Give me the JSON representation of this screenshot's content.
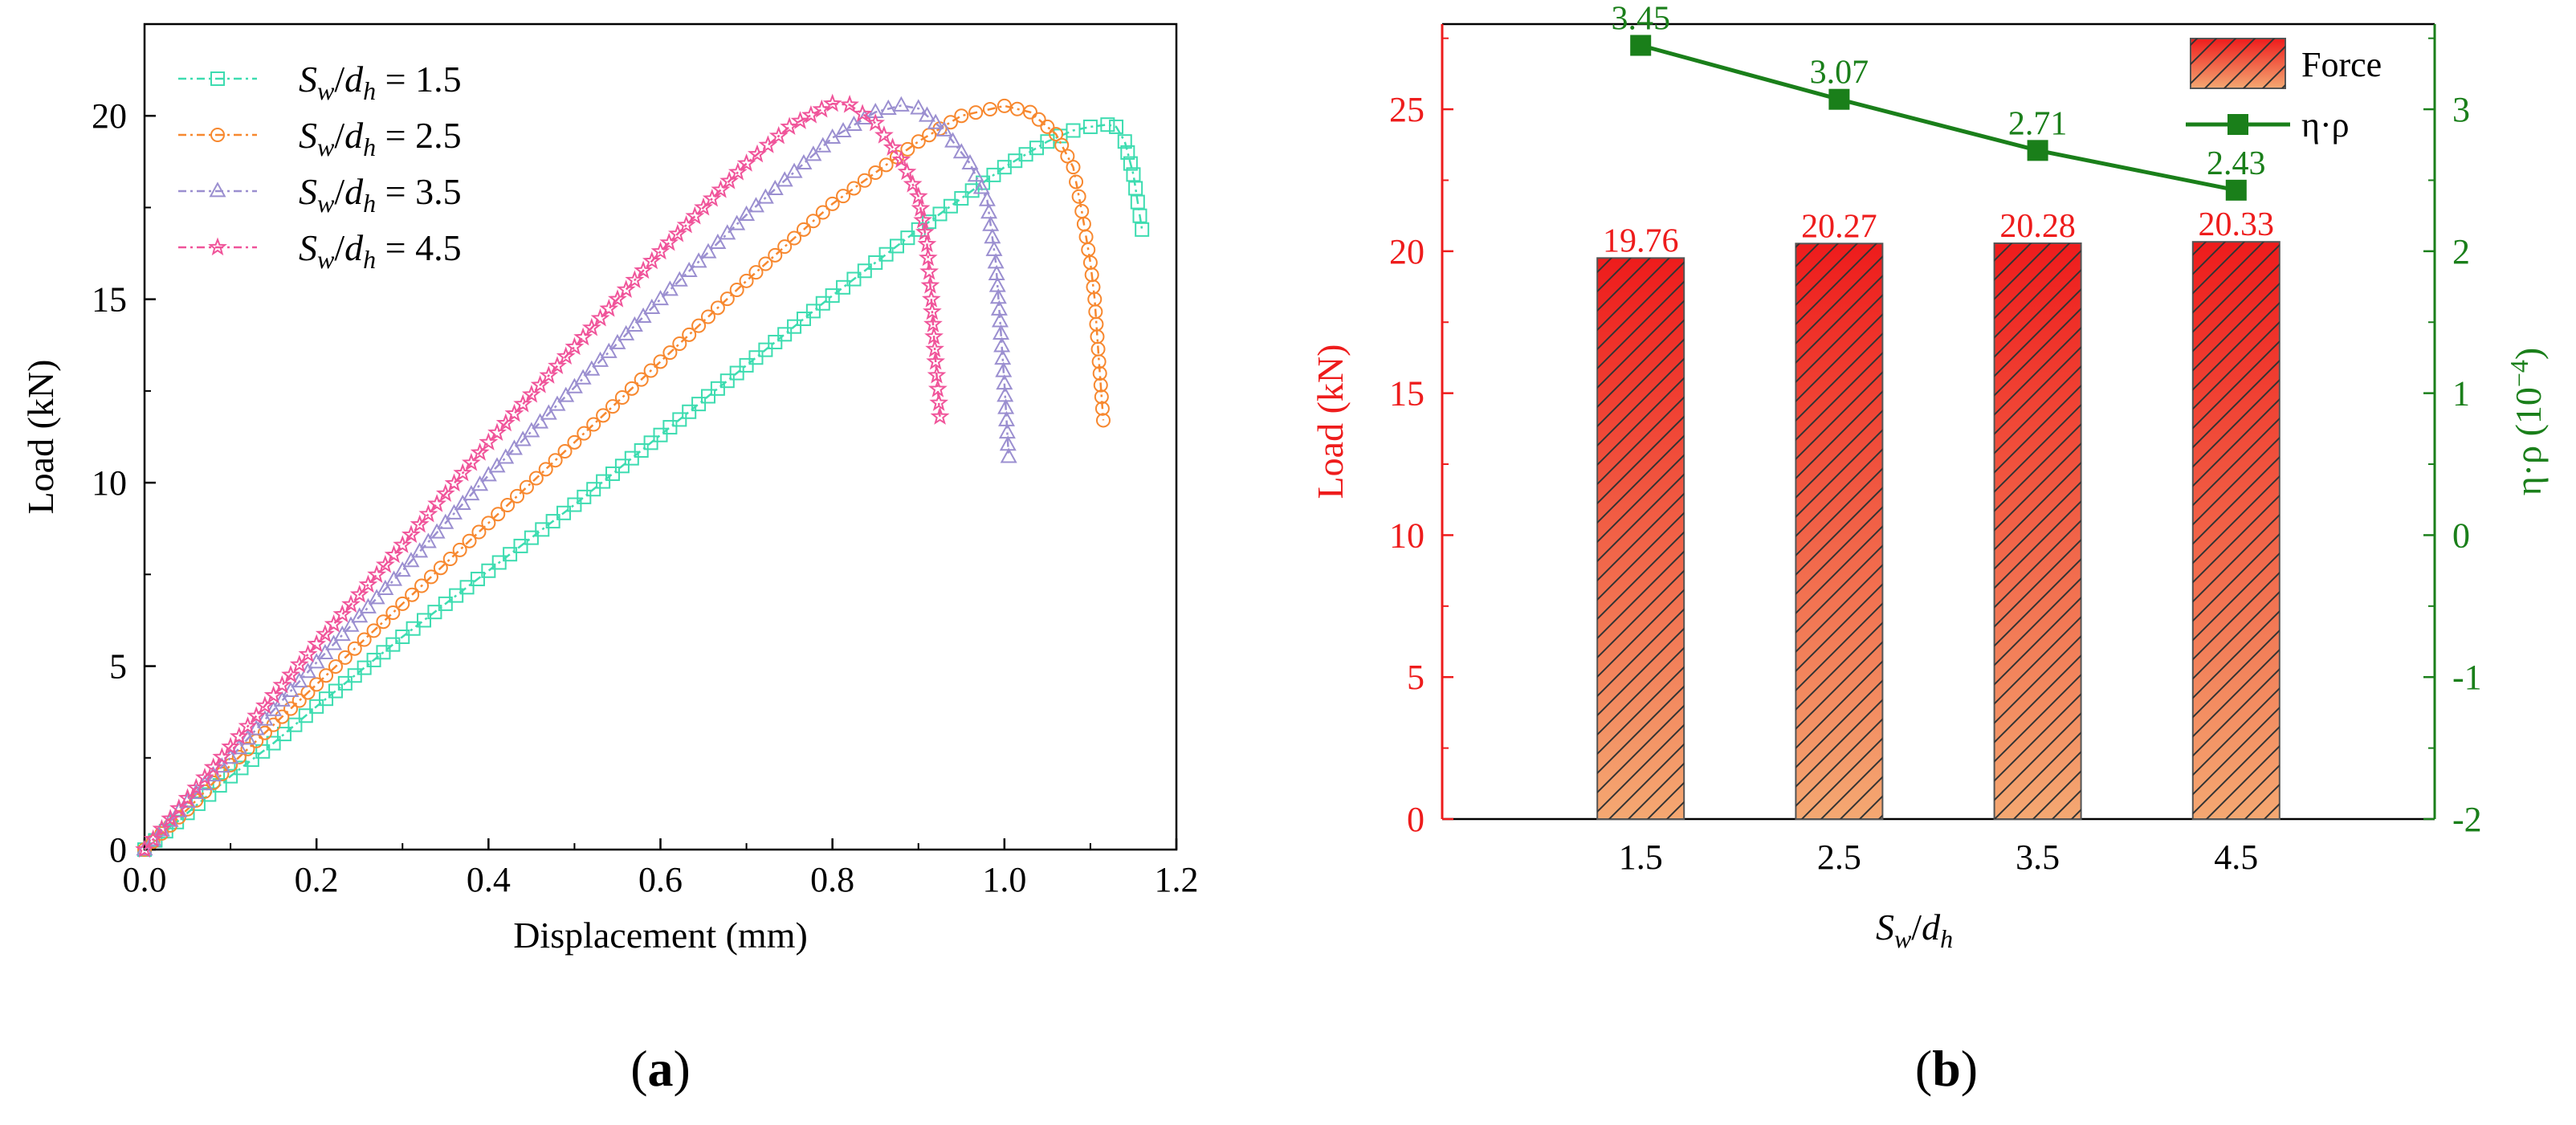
{
  "chart_data": [
    {
      "type": "line",
      "panel_label": "a",
      "xlabel": "Displacement (mm)",
      "ylabel": "Load (kN)",
      "xlim": [
        0,
        1.2
      ],
      "ylim": [
        0,
        22.5
      ],
      "xticks": [
        0.0,
        0.2,
        0.4,
        0.6,
        0.8,
        1.0,
        1.2
      ],
      "xtick_labels": [
        "0.0",
        "0.2",
        "0.4",
        "0.6",
        "0.8",
        "1.0",
        "1.2"
      ],
      "yticks": [
        0,
        5,
        10,
        15,
        20
      ],
      "ytick_labels": [
        "0",
        "5",
        "10",
        "15",
        "20"
      ],
      "legend_position": "top-left",
      "series": [
        {
          "name": "Sw/dh = 1.5",
          "var": "S",
          "sub1": "w",
          "mid": "/d",
          "sub2": "h",
          "eq": " = 1.5",
          "color": "#3ddcb0",
          "marker": "square",
          "x": [
            0,
            0.05,
            0.1,
            0.15,
            0.2,
            0.3,
            0.4,
            0.5,
            0.6,
            0.7,
            0.8,
            0.9,
            1.0,
            1.05,
            1.08,
            1.1,
            1.12,
            1.13,
            1.14,
            1.15,
            1.16
          ],
          "y": [
            0,
            1.0,
            2.0,
            2.9,
            3.9,
            5.8,
            7.6,
            9.4,
            11.3,
            13.2,
            15.1,
            16.9,
            18.6,
            19.3,
            19.6,
            19.7,
            19.76,
            19.7,
            19.3,
            18.4,
            16.9
          ]
        },
        {
          "name": "Sw/dh = 2.5",
          "var": "S",
          "sub1": "w",
          "mid": "/d",
          "sub2": "h",
          "eq": " = 2.5",
          "color": "#f7882f",
          "marker": "circle",
          "x": [
            0,
            0.05,
            0.1,
            0.15,
            0.2,
            0.3,
            0.4,
            0.5,
            0.6,
            0.7,
            0.8,
            0.9,
            0.95,
            1.0,
            1.03,
            1.06,
            1.08,
            1.09,
            1.1,
            1.105,
            1.11,
            1.115
          ],
          "y": [
            0,
            1.1,
            2.3,
            3.4,
            4.5,
            6.7,
            8.9,
            11.1,
            13.3,
            15.5,
            17.6,
            19.3,
            20.0,
            20.27,
            20.1,
            19.5,
            18.6,
            17.4,
            16.0,
            15.0,
            13.3,
            11.7
          ]
        },
        {
          "name": "Sw/dh = 3.5",
          "var": "S",
          "sub1": "w",
          "mid": "/d",
          "sub2": "h",
          "eq": " = 3.5",
          "color": "#9b8fd0",
          "marker": "triangle",
          "x": [
            0,
            0.05,
            0.1,
            0.15,
            0.2,
            0.3,
            0.4,
            0.5,
            0.6,
            0.7,
            0.8,
            0.85,
            0.88,
            0.9,
            0.93,
            0.96,
            0.98,
            0.99,
            0.995,
            1.0,
            1.005
          ],
          "y": [
            0,
            1.3,
            2.5,
            3.8,
            5.1,
            7.6,
            10.2,
            12.6,
            15.0,
            17.3,
            19.4,
            20.1,
            20.28,
            20.2,
            19.6,
            18.7,
            17.7,
            16.0,
            14.4,
            12.7,
            10.7
          ]
        },
        {
          "name": "Sw/dh = 4.5",
          "var": "S",
          "sub1": "w",
          "mid": "/d",
          "sub2": "h",
          "eq": " = 4.5",
          "color": "#f0549a",
          "marker": "star",
          "x": [
            0,
            0.05,
            0.1,
            0.15,
            0.2,
            0.3,
            0.4,
            0.5,
            0.6,
            0.7,
            0.75,
            0.8,
            0.82,
            0.85,
            0.88,
            0.9,
            0.91,
            0.915,
            0.92,
            0.925
          ],
          "y": [
            0,
            1.4,
            2.8,
            4.2,
            5.6,
            8.3,
            11.1,
            13.7,
            16.3,
            18.7,
            19.7,
            20.33,
            20.3,
            19.8,
            18.8,
            17.8,
            16.5,
            15.0,
            13.3,
            11.8
          ]
        }
      ]
    },
    {
      "type": "bar+line",
      "panel_label": "b",
      "xlabel": "Sw/dh",
      "xlabel_var": "S",
      "xlabel_sub1": "w",
      "xlabel_mid": "/d",
      "xlabel_sub2": "h",
      "ylabel": "Load (kN)",
      "y2label": "η·ρ (10−4)",
      "y2label_base": "η·ρ (10",
      "y2label_exp": "−4",
      "y2label_close": ")",
      "categories": [
        "1.5",
        "2.5",
        "3.5",
        "4.5"
      ],
      "ylim": [
        0,
        28
      ],
      "y2lim": [
        -2,
        3.6
      ],
      "yticks": [
        0,
        5,
        10,
        15,
        20,
        25
      ],
      "ytick_labels": [
        "0",
        "5",
        "10",
        "15",
        "20",
        "25"
      ],
      "y2ticks": [
        -2,
        -1,
        0,
        1,
        2,
        3
      ],
      "y2tick_labels": [
        "-2",
        "-1",
        "0",
        "1",
        "2",
        "3"
      ],
      "legend_position": "top-right",
      "series": [
        {
          "name": "Force",
          "type": "bar",
          "axis": "left",
          "values": [
            19.76,
            20.27,
            20.28,
            20.33
          ],
          "labels": [
            "19.76",
            "20.27",
            "20.28",
            "20.33"
          ],
          "color_top": "#ee1c1c",
          "color_bottom": "#f4a872",
          "edge": "#555555"
        },
        {
          "name": "η·ρ",
          "type": "line",
          "axis": "right",
          "values": [
            3.45,
            3.07,
            2.71,
            2.43
          ],
          "labels": [
            "3.45",
            "3.07",
            "2.71",
            "2.43"
          ],
          "color": "#1a7f1a"
        }
      ],
      "left_axis_color": "#ee1c1c",
      "right_axis_color": "#1a7f1a"
    }
  ]
}
